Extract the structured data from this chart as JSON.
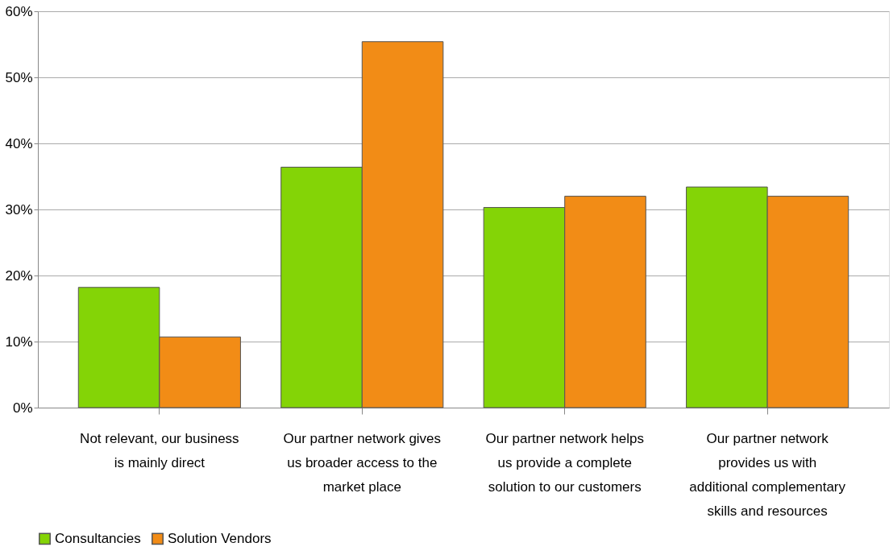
{
  "chart_data": {
    "type": "bar",
    "categories": [
      "Not relevant, our business is mainly direct",
      "Our partner network gives us broader access to the market place",
      "Our partner network helps us provide a complete solution to our customers",
      "Our partner network provides us with additional complementary skills and resources"
    ],
    "series": [
      {
        "name": "Consultancies",
        "color": "#84d406",
        "values": [
          18.2,
          36.4,
          30.3,
          33.4
        ]
      },
      {
        "name": "Solution Vendors",
        "color": "#f28c16",
        "values": [
          10.7,
          55.4,
          32.0,
          32.0
        ]
      }
    ],
    "ylim": [
      0,
      60
    ],
    "yticks": [
      {
        "value": 0,
        "label": "0%"
      },
      {
        "value": 10,
        "label": "10%"
      },
      {
        "value": 20,
        "label": "20%"
      },
      {
        "value": 30,
        "label": "30%"
      },
      {
        "value": 40,
        "label": "40%"
      },
      {
        "value": 50,
        "label": "50%"
      },
      {
        "value": 60,
        "label": "60%"
      }
    ],
    "grid": "y",
    "legend": "bottom"
  }
}
